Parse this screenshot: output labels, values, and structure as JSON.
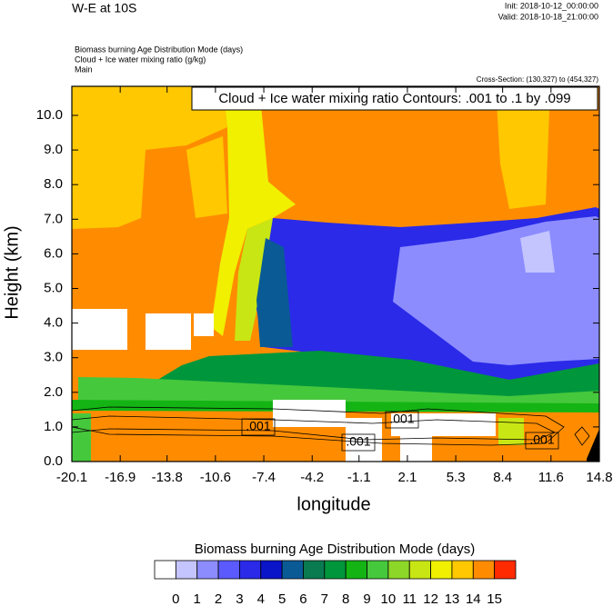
{
  "chart_data": {
    "type": "contour",
    "title": "W-E at 10S",
    "init": "Init: 2018-10-12_00:00:00",
    "valid": "Valid: 2018-10-18_21:00:00",
    "field_labels": [
      "Biomass burning Age Distribution Mode   (days)",
      "Cloud + Ice water mixing ratio   (g/kg)",
      "Main"
    ],
    "cross_section": "Cross-Section: (130,327) to (454,327)",
    "contour_info": "Cloud + Ice water mixing ratio Contours: .001 to .1 by .099",
    "xlabel": "longitude",
    "ylabel": "Height (km)",
    "xlim": [
      -20.1,
      14.8
    ],
    "xticks": [
      -20.1,
      -16.9,
      -13.8,
      -10.6,
      -7.4,
      -4.2,
      -1.1,
      2.1,
      5.3,
      8.4,
      11.6,
      14.8
    ],
    "ylim": [
      0,
      10.84
    ],
    "yticks": [
      {
        "value": 0,
        "label": "0.0"
      },
      {
        "value": 1,
        "label": "1.0"
      },
      {
        "value": 2,
        "label": "2.0"
      },
      {
        "value": 3,
        "label": "3.0"
      },
      {
        "value": 4,
        "label": "4.0"
      },
      {
        "value": 5,
        "label": "5.0"
      },
      {
        "value": 6,
        "label": "6.0"
      },
      {
        "value": 7,
        "label": "7.0"
      },
      {
        "value": 8,
        "label": "8.0"
      },
      {
        "value": 9,
        "label": "9.0"
      },
      {
        "value": 10,
        "label": "10.0"
      }
    ],
    "contour_labels": [
      ".001",
      ".001",
      ".001",
      ".001"
    ],
    "colorbar": {
      "title": "Biomass burning Age Distribution Mode  (days)",
      "levels": [
        0,
        1,
        2,
        3,
        4,
        5,
        6,
        7,
        8,
        9,
        10,
        11,
        12,
        13,
        14,
        15
      ],
      "colors": [
        "#ffffff",
        "#c4c4ff",
        "#8c8cff",
        "#5a5aff",
        "#2a2ae8",
        "#0a14c8",
        "#0a5a96",
        "#0a7a50",
        "#00963c",
        "#14b414",
        "#46c83c",
        "#8cd728",
        "#c8e614",
        "#f0f000",
        "#ffc800",
        "#ff8c00",
        "#ff2a00"
      ]
    }
  }
}
